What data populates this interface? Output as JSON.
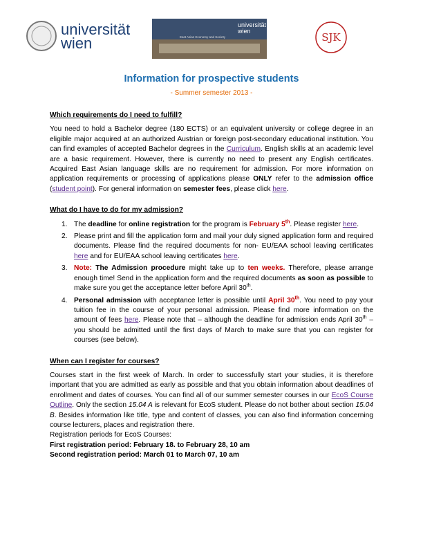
{
  "header": {
    "logo_left": [
      "universität",
      "wien"
    ],
    "banner_title": [
      "universität",
      "wien"
    ],
    "banner_caption": "East Asian Economy and Society",
    "logo_right": "SJK"
  },
  "title": "Information for prospective students",
  "subtitle": "- Summer semester 2013 -",
  "sections": [
    {
      "heading": "Which requirements do I need to fulfill?",
      "paragraph": [
        "You need to hold a Bachelor degree (180 ECTS) or an equivalent university or college degree in an eligible major acquired at an authorized Austrian or foreign post-secondary educational institution. You can find examples of accepted Bachelor degrees in the ",
        "Curriculum",
        ". English skills at an academic level are a basic requirement. However, there is currently no need to present any English certificates. Acquired East Asian language skills are no requirement for admission. For more information on application requirements or processing of applications please ",
        "ONLY",
        " refer to the ",
        "admission office",
        " (",
        "student point",
        "). For general information on ",
        "semester fees",
        ", please click ",
        "here",
        "."
      ]
    },
    {
      "heading": "What do I have to do for my admission?",
      "items": [
        {
          "marker": "1.",
          "text": [
            "The ",
            "deadline",
            " for ",
            "online registration",
            " for the program is ",
            "February 5",
            "th",
            ". Please register ",
            "here",
            "."
          ]
        },
        {
          "marker": "2.",
          "text": [
            "Please print and fill the application form and mail your duly signed application form and required documents. Please find the required documents for non- EU/EAA school leaving certificates ",
            "here",
            " and for EU/EAA school leaving certificates ",
            "here",
            "."
          ]
        },
        {
          "marker": "3.",
          "text": [
            "Note:",
            " ",
            "The Admission procedure",
            " might take up to ",
            "ten weeks.",
            " Therefore, please arrange enough time! Send in the application form and the required documents ",
            "as soon as possible",
            " to make sure you get the acceptance letter before April 30",
            "th",
            "."
          ]
        },
        {
          "marker": "4.",
          "text": [
            "Personal admission",
            " with acceptance letter is possible until ",
            "April 30",
            "th",
            ". You need to pay your tuition fee in the course of your personal admission. Please find more information on the amount of fees ",
            "here",
            ". Please note that – although the deadline for admission ends April 30",
            "th",
            " – you should be admitted until the first days of March to make sure that you can register for courses (see below)."
          ]
        }
      ]
    },
    {
      "heading": "When can I register for courses?",
      "paragraph": [
        "Courses start in the first week of March. In order to successfully start your studies, it is therefore important that you are admitted as early as possible and that you obtain information about deadlines of enrollment and dates of courses. You can find all of our summer semester courses in our ",
        "EcoS Course Outline",
        ". Only the section ",
        "15.04 A",
        " is relevant for EcoS student. Please do not bother about section ",
        "15.04 B",
        ". Besides information like title, type and content of classes, you can also find information concerning course lecturers, places and registration there."
      ],
      "lines": [
        "Registration periods for EcoS Courses:",
        "First registration period: February 18. to February 28, 10 am",
        "Second registration period: March 01 to March 07, 10 am"
      ]
    }
  ]
}
